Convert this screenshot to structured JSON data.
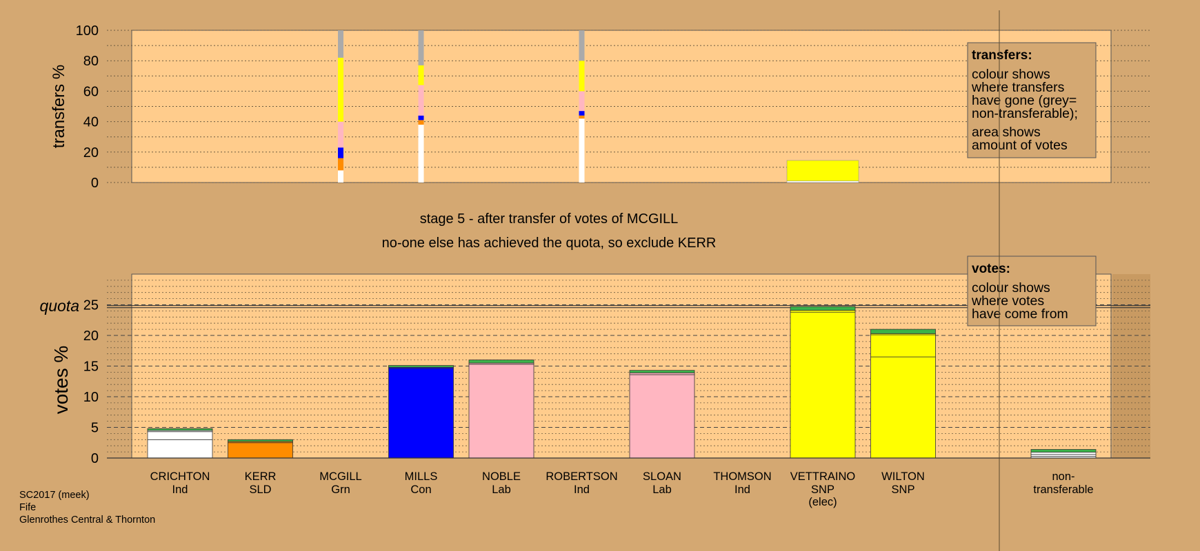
{
  "chart_data": {
    "type": "bar",
    "stage_line1": "stage 5 - after transfer of votes of MCGILL",
    "stage_line2": "no-one else has achieved the quota, so exclude KERR",
    "transfers_panel": {
      "ylabel": "transfers %",
      "ylim": [
        0,
        100
      ],
      "yticks": [
        0,
        20,
        40,
        60,
        80,
        100
      ],
      "legend": {
        "title": "transfers:",
        "lines1": [
          "colour shows",
          "where transfers",
          "have gone (grey=",
          "non-transferable);"
        ],
        "lines2": [
          "area shows",
          "amount of votes"
        ]
      },
      "bars": [
        {
          "candidate": "MCGILL",
          "width": "thin",
          "segments": [
            {
              "from": 0,
              "to": 8,
              "color": "#ffffff"
            },
            {
              "from": 8,
              "to": 16,
              "color": "#ff8c00"
            },
            {
              "from": 16,
              "to": 23,
              "color": "#0000ff"
            },
            {
              "from": 23,
              "to": 40,
              "color": "#ffb6c1"
            },
            {
              "from": 40,
              "to": 82,
              "color": "#ffff00"
            },
            {
              "from": 82,
              "to": 100,
              "color": "#aaaaaa"
            }
          ]
        },
        {
          "candidate": "MILLS",
          "width": "thin",
          "segments": [
            {
              "from": 0,
              "to": 38,
              "color": "#ffffff"
            },
            {
              "from": 38,
              "to": 41,
              "color": "#ff8c00"
            },
            {
              "from": 41,
              "to": 44,
              "color": "#0000ff"
            },
            {
              "from": 44,
              "to": 64,
              "color": "#ffb6c1"
            },
            {
              "from": 64,
              "to": 77,
              "color": "#ffff00"
            },
            {
              "from": 77,
              "to": 100,
              "color": "#aaaaaa"
            }
          ]
        },
        {
          "candidate": "ROBERTSON",
          "width": "thin",
          "segments": [
            {
              "from": 0,
              "to": 42,
              "color": "#ffffff"
            },
            {
              "from": 42,
              "to": 44,
              "color": "#ff8c00"
            },
            {
              "from": 44,
              "to": 47,
              "color": "#0000ff"
            },
            {
              "from": 47,
              "to": 60,
              "color": "#ffb6c1"
            },
            {
              "from": 60,
              "to": 80,
              "color": "#ffff00"
            },
            {
              "from": 80,
              "to": 100,
              "color": "#aaaaaa"
            }
          ]
        },
        {
          "candidate": "VETTRAINO",
          "width": "wide",
          "segments": [
            {
              "from": 0,
              "to": 1,
              "color": "#ffffff"
            },
            {
              "from": 1,
              "to": 14.5,
              "color": "#ffff00"
            }
          ]
        }
      ]
    },
    "votes_panel": {
      "ylabel": "votes %",
      "ylim": [
        0,
        30
      ],
      "yticks": [
        0,
        5,
        10,
        15,
        20,
        25
      ],
      "quota": 24.7,
      "quota_label": "quota",
      "legend": {
        "title": "votes:",
        "lines": [
          "colour shows",
          "where votes",
          "have come from"
        ]
      },
      "candidates": [
        {
          "name": "CRICHTON",
          "party": "Ind",
          "extra": "",
          "segments": [
            {
              "value": 3.0,
              "color": "#ffffff"
            },
            {
              "value": 1.3,
              "color": "#ffffff"
            },
            {
              "value": 0.2,
              "color": "#ffffff"
            },
            {
              "value": 0.3,
              "color": "#3cb34a"
            }
          ]
        },
        {
          "name": "KERR",
          "party": "SLD",
          "extra": "",
          "segments": [
            {
              "value": 2.5,
              "color": "#ff8c00"
            },
            {
              "value": 0.2,
              "color": "#ff8c00"
            },
            {
              "value": 0.3,
              "color": "#3cb34a"
            }
          ]
        },
        {
          "name": "MCGILL",
          "party": "Grn",
          "extra": "",
          "segments": []
        },
        {
          "name": "MILLS",
          "party": "Con",
          "extra": "",
          "segments": [
            {
              "value": 14.6,
              "color": "#0000ff"
            },
            {
              "value": 0.2,
              "color": "#0000ff"
            },
            {
              "value": 0.3,
              "color": "#3cb34a"
            }
          ]
        },
        {
          "name": "NOBLE",
          "party": "Lab",
          "extra": "",
          "segments": [
            {
              "value": 15.3,
              "color": "#ffb6c1"
            },
            {
              "value": 0.2,
              "color": "#ffb6c1"
            },
            {
              "value": 0.5,
              "color": "#3cb34a"
            }
          ]
        },
        {
          "name": "ROBERTSON",
          "party": "Ind",
          "extra": "",
          "segments": []
        },
        {
          "name": "SLOAN",
          "party": "Lab",
          "extra": "",
          "segments": [
            {
              "value": 13.6,
              "color": "#ffb6c1"
            },
            {
              "value": 0.3,
              "color": "#ffb6c1"
            },
            {
              "value": 0.4,
              "color": "#3cb34a"
            }
          ]
        },
        {
          "name": "THOMSON",
          "party": "Ind",
          "extra": "",
          "segments": []
        },
        {
          "name": "VETTRAINO",
          "party": "SNP",
          "extra": "(elec)",
          "segments": [
            {
              "value": 23.8,
              "color": "#ffff00"
            },
            {
              "value": 0.3,
              "color": "#ffff00"
            },
            {
              "value": 0.6,
              "color": "#3cb34a"
            }
          ]
        },
        {
          "name": "WILTON",
          "party": "SNP",
          "extra": "",
          "segments": [
            {
              "value": 16.5,
              "color": "#ffff00"
            },
            {
              "value": 3.6,
              "color": "#ffff00"
            },
            {
              "value": 0.2,
              "color": "#ffff00"
            },
            {
              "value": 0.7,
              "color": "#3cb34a"
            }
          ]
        }
      ],
      "nontransferable": {
        "name": "non-",
        "name2": "transferable",
        "segments": [
          {
            "value": 0.3,
            "color": "#ffffff"
          },
          {
            "value": 0.3,
            "color": "#ffffff"
          },
          {
            "value": 0.35,
            "color": "#ffffff"
          },
          {
            "value": 0.45,
            "color": "#3cb34a"
          }
        ]
      }
    }
  },
  "footer": {
    "line1": "SC2017 (meek)",
    "line2": "Fife",
    "line3": "Glenrothes Central & Thornton"
  }
}
